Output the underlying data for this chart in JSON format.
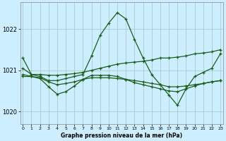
{
  "background_color": "#cceeff",
  "grid_color": "#aacccc",
  "line_color": "#1a5c1a",
  "xlabel": "Graphe pression niveau de la mer (hPa)",
  "ylim": [
    1019.7,
    1022.65
  ],
  "yticks": [
    1020,
    1021,
    1022
  ],
  "xlim": [
    -0.3,
    23.3
  ],
  "xticks": [
    0,
    1,
    2,
    3,
    4,
    5,
    6,
    7,
    8,
    9,
    10,
    11,
    12,
    13,
    14,
    15,
    16,
    17,
    18,
    19,
    20,
    21,
    22,
    23
  ],
  "series": [
    {
      "x": [
        0,
        1,
        2,
        3,
        4,
        5,
        6,
        7,
        8,
        9,
        10,
        11,
        12,
        13,
        14,
        15,
        16,
        17,
        18,
        19,
        20,
        21,
        22,
        23
      ],
      "y": [
        1021.3,
        1020.9,
        1020.85,
        1020.75,
        1020.75,
        1020.8,
        1020.85,
        1020.9,
        1021.35,
        1021.85,
        1022.15,
        1022.4,
        1022.25,
        1021.75,
        1021.3,
        1020.9,
        1020.65,
        1020.4,
        1020.15,
        1020.55,
        1020.85,
        1020.95,
        1021.05,
        1021.4
      ]
    },
    {
      "x": [
        0,
        1,
        2,
        3,
        4,
        5,
        6,
        7,
        8,
        9,
        10,
        11,
        12,
        13,
        14,
        15,
        16,
        17,
        18,
        19,
        20,
        21,
        22,
        23
      ],
      "y": [
        1021.05,
        1020.9,
        1020.9,
        1020.88,
        1020.88,
        1020.9,
        1020.92,
        1020.95,
        1021.0,
        1021.05,
        1021.1,
        1021.15,
        1021.18,
        1021.2,
        1021.22,
        1021.25,
        1021.3,
        1021.3,
        1021.32,
        1021.35,
        1021.4,
        1021.42,
        1021.45,
        1021.5
      ]
    },
    {
      "x": [
        0,
        1,
        2,
        3,
        4,
        5,
        6,
        7,
        8,
        9,
        10,
        11,
        12,
        13,
        14,
        15,
        16,
        17,
        18,
        19,
        20,
        21,
        22,
        23
      ],
      "y": [
        1020.85,
        1020.85,
        1020.82,
        1020.72,
        1020.65,
        1020.68,
        1020.72,
        1020.78,
        1020.82,
        1020.82,
        1020.82,
        1020.8,
        1020.78,
        1020.75,
        1020.72,
        1020.68,
        1020.65,
        1020.6,
        1020.6,
        1020.62,
        1020.65,
        1020.68,
        1020.72,
        1020.75
      ]
    },
    {
      "x": [
        0,
        1,
        2,
        3,
        4,
        5,
        6,
        7,
        8,
        9,
        10,
        11,
        12,
        13,
        14,
        15,
        16,
        17,
        18,
        19,
        20,
        21,
        22,
        23
      ],
      "y": [
        1020.9,
        1020.85,
        1020.8,
        1020.6,
        1020.42,
        1020.48,
        1020.62,
        1020.78,
        1020.88,
        1020.88,
        1020.88,
        1020.85,
        1020.78,
        1020.7,
        1020.65,
        1020.6,
        1020.55,
        1020.5,
        1020.48,
        1020.55,
        1020.62,
        1020.68,
        1020.72,
        1020.75
      ]
    }
  ]
}
